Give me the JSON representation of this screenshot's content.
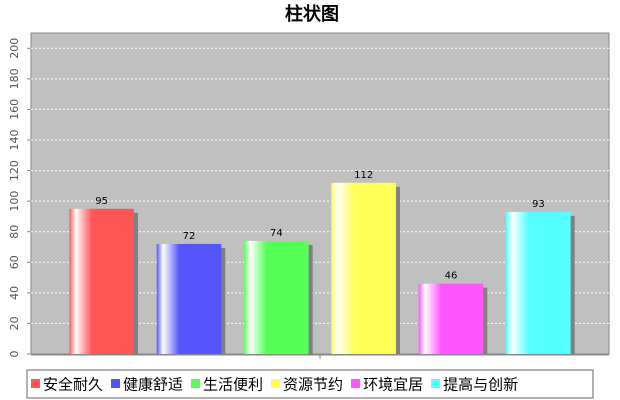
{
  "chart_data": {
    "type": "bar",
    "title": "柱状图",
    "categories": [
      null
    ],
    "series": [
      {
        "name": "安全耐久",
        "color": "#ff5555",
        "values": [
          95
        ]
      },
      {
        "name": "健康舒适",
        "color": "#5555ff",
        "values": [
          72
        ]
      },
      {
        "name": "生活便利",
        "color": "#55ff55",
        "values": [
          74
        ]
      },
      {
        "name": "资源节约",
        "color": "#ffff55",
        "values": [
          112
        ]
      },
      {
        "name": "环境宜居",
        "color": "#ff55ff",
        "values": [
          46
        ]
      },
      {
        "name": "提高与创新",
        "color": "#55ffff",
        "values": [
          93
        ]
      }
    ],
    "ylim": [
      0,
      210
    ],
    "yticks": [
      0,
      20,
      40,
      60,
      80,
      100,
      120,
      140,
      160,
      180,
      200
    ],
    "grid": true,
    "legend": "bottom"
  }
}
